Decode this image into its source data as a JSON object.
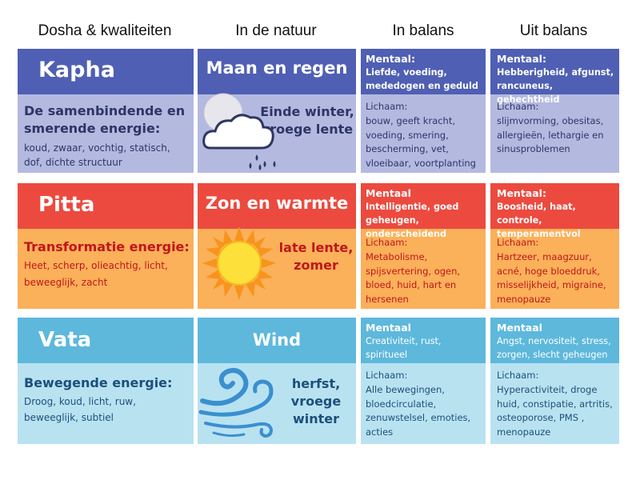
{
  "headers": {
    "col1": "Dosha & kwaliteiten",
    "col2": "In de natuur",
    "col3": "In balans",
    "col4": "Uit balans"
  },
  "rows": [
    {
      "name": "Kapha",
      "energy_title": "De samenbindende en smerende energie:",
      "energy_desc": "koud, zwaar, vochtig, statisch, dof, dichte structuur",
      "nature_title": "Maan en regen",
      "season": "Einde winter, vroege lente",
      "icon": "cloud-rain-moon-icon",
      "balance_mental_label": "Mentaal:",
      "balance_mental": "Liefde, voeding, mededogen en geduld",
      "balance_body_label": "Lichaam:",
      "balance_body": "bouw, geeft kracht, voeding, smering, bescherming, vet, vloeibaar, voortplanting",
      "imbalance_mental_label": "Mentaal:",
      "imbalance_mental": "Hebberigheid, afgunst, rancuneus, gehechtheid",
      "imbalance_body_label": "Lichaam:",
      "imbalance_body": "slijmvorming, obesitas, allergieën, lethargie en sinusproblemen",
      "colors": {
        "dark": "#4f5fb3",
        "light": "#b4b9e0",
        "text": "#2c3566"
      }
    },
    {
      "name": "Pitta",
      "energy_title": "Transformatie energie:",
      "energy_desc": "Heet, scherp, olieachtig, licht, beweeglijk, zacht",
      "nature_title": "Zon en warmte",
      "season": "late lente, zomer",
      "icon": "sun-icon",
      "balance_mental_label": "Mentaal",
      "balance_mental": "Intelligentie, goed geheugen, onderscheidend",
      "balance_body_label": "Lichaam:",
      "balance_body": "Metabolisme, spijsvertering, ogen, bloed, huid, hart en hersenen",
      "imbalance_mental_label": "Mentaal:",
      "imbalance_mental": "Boosheid, haat, controle, temperamentvol",
      "imbalance_body_label": "Lichaam:",
      "imbalance_body": "Hartzeer, maagzuur, acné, hoge bloeddruk, misselijkheid, migraine, menopauze",
      "colors": {
        "dark": "#ec4a3f",
        "light": "#fbb05a",
        "text": "#c0161b"
      }
    },
    {
      "name": "Vata",
      "energy_title": "Bewegende energie:",
      "energy_desc": "Droog, koud, licht, ruw, beweeglijk, subtiel",
      "nature_title": "Wind",
      "season": "herfst, vroege winter",
      "icon": "wind-icon",
      "balance_mental_label": "Mentaal",
      "balance_mental": "Creativiteit, rust, spiritueel",
      "balance_body_label": "Lichaam:",
      "balance_body": "Alle bewegingen, bloedcirculatie, zenuwstelsel, emoties, acties",
      "imbalance_mental_label": "Mentaal",
      "imbalance_mental": "Angst, nervositeit, stress, zorgen, slecht geheugen",
      "imbalance_body_label": "Lichaam:",
      "imbalance_body": "Hyperactiviteit, droge huid, constipatie, artritis, osteoporose, PMS , menopauze",
      "colors": {
        "dark": "#5db8dc",
        "light": "#b9e2f1",
        "text": "#1d4f7a"
      }
    }
  ]
}
